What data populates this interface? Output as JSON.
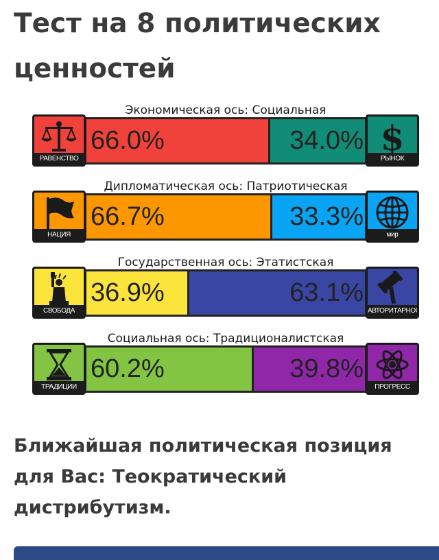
{
  "page": {
    "title": "Тест на 8 политических ценностей",
    "result": "Ближайшая политическая позиция для Вас: Теократический дистрибутизм."
  },
  "axes": [
    {
      "label": "Экономическая ось: Социальная",
      "left": {
        "caption": "РАВЕНСТВО",
        "icon": "scales-icon",
        "color": "#f0423a",
        "value_text": "66.0%",
        "value": 66.0
      },
      "right": {
        "caption": "РЫНОК",
        "icon": "dollar-icon",
        "color": "#118c76",
        "value_text": "34.0%",
        "value": 34.0
      }
    },
    {
      "label": "Дипломатическая ось: Патриотическая",
      "left": {
        "caption": "НАЦИЯ",
        "icon": "flag-icon",
        "color": "#fd9700",
        "value_text": "66.7%",
        "value": 66.7
      },
      "right": {
        "caption": "мир",
        "icon": "globe-icon",
        "color": "#09a4f3",
        "value_text": "33.3%",
        "value": 33.3
      }
    },
    {
      "label": "Государственная ось: Этатистская",
      "left": {
        "caption": "СВОБОДА",
        "icon": "statue-of-liberty-icon",
        "color": "#fbe53c",
        "value_text": "36.9%",
        "value": 36.9
      },
      "right": {
        "caption": "АВТОРИТАРНОСТЬ",
        "icon": "gavel-icon",
        "color": "#3a46a4",
        "value_text": "63.1%",
        "value": 63.1
      }
    },
    {
      "label": "Социальная ось: Традиционалистская",
      "left": {
        "caption": "ТРАДИЦИИ",
        "icon": "hourglass-icon",
        "color": "#83c543",
        "value_text": "60.2%",
        "value": 60.2
      },
      "right": {
        "caption": "ПРОГРЕСС",
        "icon": "atom-icon",
        "color": "#8f27a8",
        "value_text": "39.8%",
        "value": 39.8
      }
    }
  ]
}
